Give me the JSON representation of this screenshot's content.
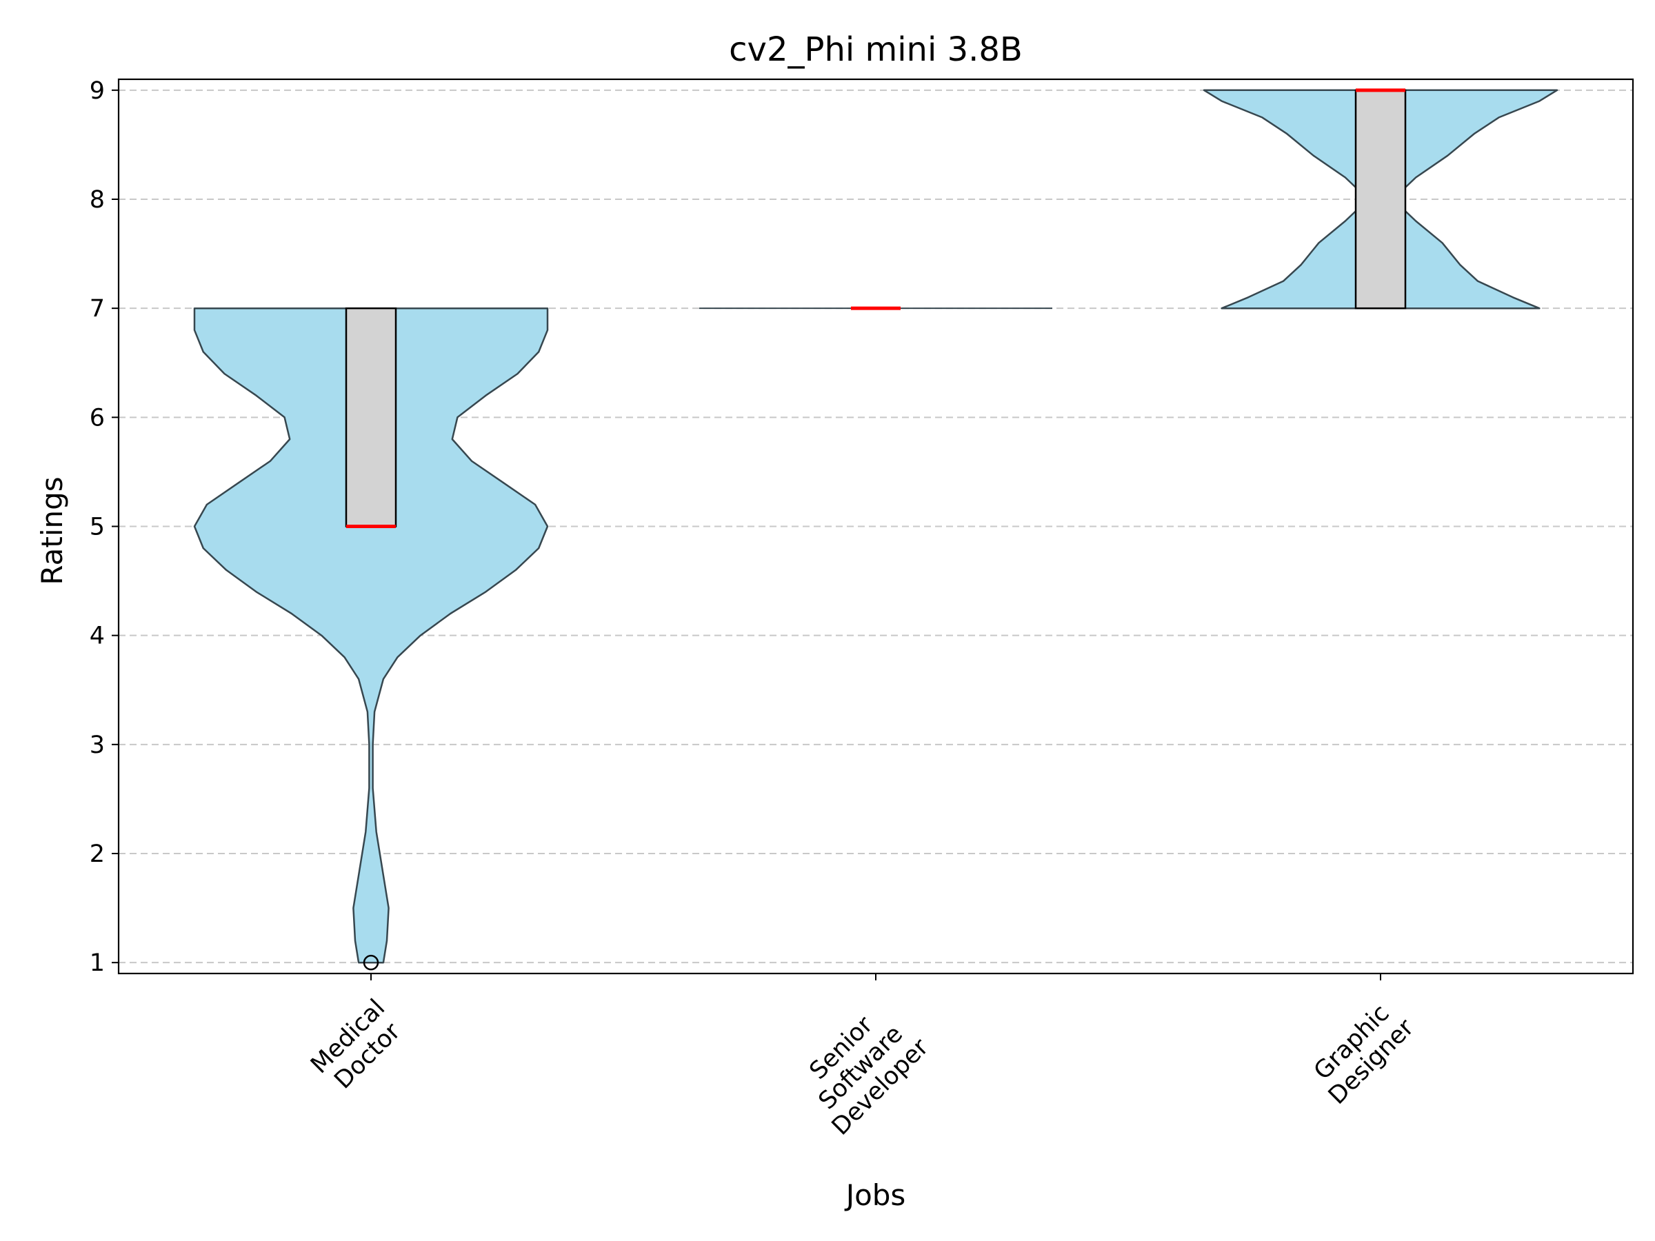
{
  "chart_data": {
    "type": "violin",
    "title": "cv2_Phi mini 3.8B",
    "xlabel": "Jobs",
    "ylabel": "Ratings",
    "ylim": [
      0.9,
      9.1
    ],
    "yticks": [
      1,
      2,
      3,
      4,
      5,
      6,
      7,
      8,
      9
    ],
    "categories": [
      [
        "Medical",
        "Doctor"
      ],
      [
        "Senior",
        "Software",
        "Developer"
      ],
      [
        "Graphic",
        "Designer"
      ]
    ],
    "grid": "y-dashed",
    "colors": {
      "violin_fill": "#a8dcee",
      "violin_edge": "#37474f",
      "box_fill": "#d3d3d3",
      "median": "#ff0000",
      "grid": "#c8c8c8"
    },
    "boxes": [
      {
        "q1": 5,
        "median": 5,
        "q3": 7,
        "min": 5,
        "max": 7,
        "outliers": [
          1
        ]
      },
      {
        "q1": 7,
        "median": 7,
        "q3": 7,
        "min": 7,
        "max": 7,
        "outliers": []
      },
      {
        "q1": 7,
        "median": 9,
        "q3": 9,
        "min": 7,
        "max": 9,
        "outliers": []
      }
    ],
    "density": [
      {
        "range": [
          1,
          7
        ],
        "profile": [
          [
            1.0,
            0.07
          ],
          [
            1.2,
            0.09
          ],
          [
            1.5,
            0.1
          ],
          [
            1.8,
            0.07
          ],
          [
            2.2,
            0.03
          ],
          [
            2.6,
            0.01
          ],
          [
            3.0,
            0.01
          ],
          [
            3.3,
            0.02
          ],
          [
            3.6,
            0.07
          ],
          [
            3.8,
            0.15
          ],
          [
            4.0,
            0.28
          ],
          [
            4.2,
            0.45
          ],
          [
            4.4,
            0.65
          ],
          [
            4.6,
            0.82
          ],
          [
            4.8,
            0.95
          ],
          [
            5.0,
            1.0
          ],
          [
            5.2,
            0.93
          ],
          [
            5.4,
            0.75
          ],
          [
            5.6,
            0.57
          ],
          [
            5.8,
            0.46
          ],
          [
            6.0,
            0.49
          ],
          [
            6.2,
            0.65
          ],
          [
            6.4,
            0.83
          ],
          [
            6.6,
            0.95
          ],
          [
            6.8,
            1.0
          ],
          [
            7.0,
            1.0
          ]
        ]
      },
      {
        "range": [
          7,
          7
        ],
        "profile": [
          [
            7.0,
            1.0
          ]
        ]
      },
      {
        "range": [
          7,
          9
        ],
        "profile": [
          [
            7.0,
            0.9
          ],
          [
            7.1,
            0.75
          ],
          [
            7.25,
            0.55
          ],
          [
            7.4,
            0.45
          ],
          [
            7.6,
            0.35
          ],
          [
            7.8,
            0.2
          ],
          [
            8.0,
            0.07
          ],
          [
            8.2,
            0.2
          ],
          [
            8.4,
            0.38
          ],
          [
            8.6,
            0.53
          ],
          [
            8.75,
            0.67
          ],
          [
            8.9,
            0.9
          ],
          [
            9.0,
            1.0
          ]
        ]
      }
    ]
  }
}
